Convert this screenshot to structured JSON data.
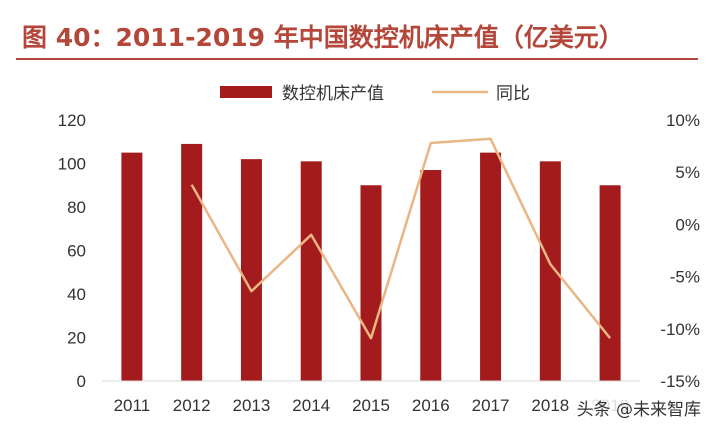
{
  "title": "图 40：2011-2019 年中国数控机床产值（亿美元）",
  "watermark": "头条 @未来智库",
  "colors": {
    "bar": "#a31b1c",
    "line": "#e9b684",
    "title": "#b5473a"
  },
  "chart_data": {
    "type": "bar",
    "categories": [
      "2011",
      "2012",
      "2013",
      "2014",
      "2015",
      "2016",
      "2017",
      "2018",
      "2019"
    ],
    "series": [
      {
        "name": "数控机床产值",
        "type": "bar",
        "axis": "left",
        "values": [
          105,
          109,
          102,
          101,
          90,
          97,
          105,
          101,
          90
        ]
      },
      {
        "name": "同比",
        "type": "line",
        "axis": "right",
        "values": [
          null,
          3.8,
          -6.4,
          -1.0,
          -10.9,
          7.8,
          8.2,
          -3.8,
          -10.9
        ]
      }
    ],
    "ylim": [
      0,
      120
    ],
    "y_ticks": [
      0,
      20,
      40,
      60,
      80,
      100,
      120
    ],
    "y2lim": [
      -15,
      10
    ],
    "y2_ticks": [
      "-15%",
      "-10%",
      "-5%",
      "0%",
      "5%",
      "10%"
    ],
    "y2_tick_values": [
      -15,
      -10,
      -5,
      0,
      5,
      10
    ],
    "legend_position": "top",
    "grid": false
  }
}
